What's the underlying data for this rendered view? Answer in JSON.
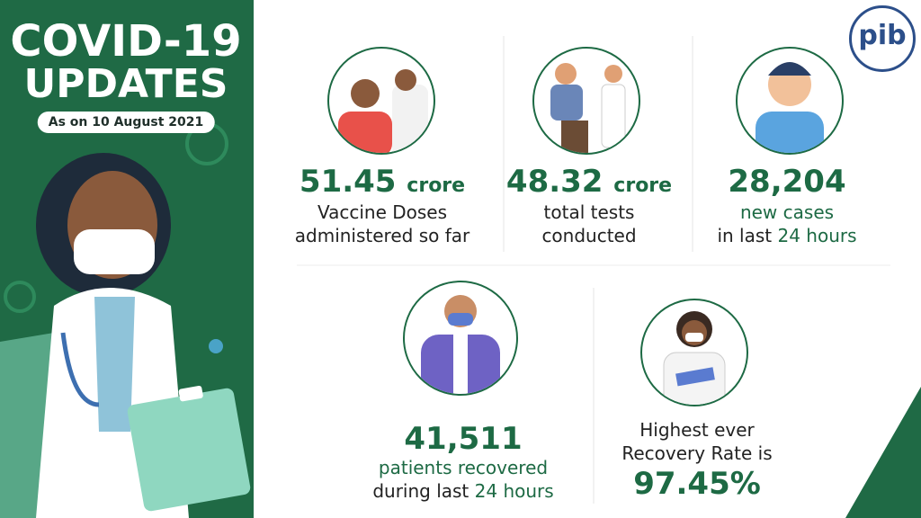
{
  "header": {
    "title_line1": "COVID-19",
    "title_line2": "UPDATES",
    "date": "As on 10 August 2021",
    "logo": "pib"
  },
  "stats": [
    {
      "value": "51.45",
      "unit": "crore",
      "line1": "Vaccine Doses",
      "line2": "administered so far"
    },
    {
      "value": "48.32",
      "unit": "crore",
      "line1": "total tests",
      "line2": "conducted"
    },
    {
      "value": "28,204",
      "line1": "new cases",
      "line2": "in last",
      "line2_highlight": "24 hours"
    },
    {
      "value": "41,511",
      "line1": "patients recovered",
      "line2": "during last",
      "line2_highlight": "24 hours"
    },
    {
      "line1": "Highest ever",
      "line2": "Recovery Rate is",
      "value": "97.45%"
    }
  ]
}
